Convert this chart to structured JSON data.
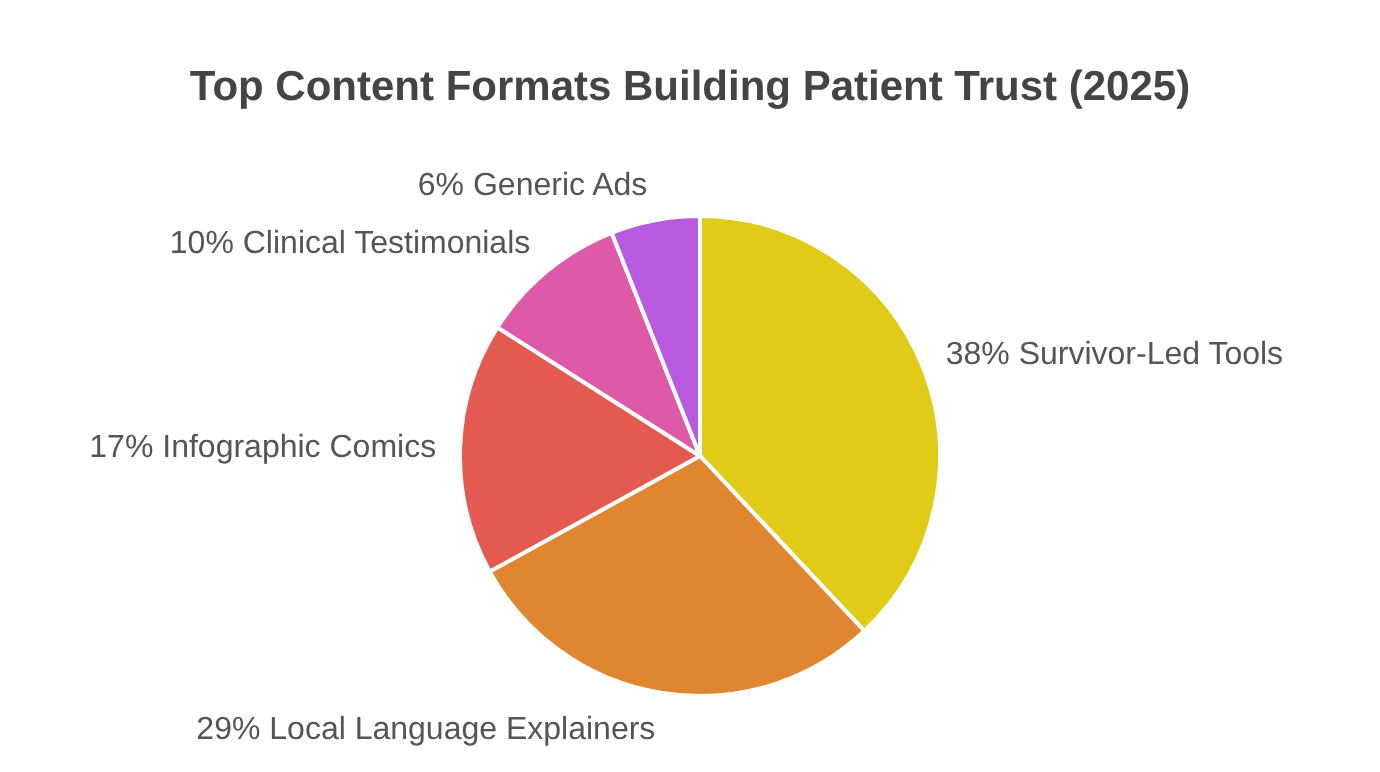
{
  "chart_data": {
    "type": "pie",
    "title": "Top Content Formats Building Patient Trust (2025)",
    "categories": [
      "Survivor-Led Tools",
      "Local Language Explainers",
      "Infographic Comics",
      "Clinical Testimonials",
      "Generic Ads"
    ],
    "values": [
      38,
      29,
      17,
      10,
      6
    ],
    "value_labels": [
      "38%",
      "29%",
      "17%",
      "10%",
      "6%"
    ],
    "colors": [
      "#dfcb18",
      "#e08530",
      "#e35a50",
      "#dd5aa8",
      "#b85ae0"
    ],
    "legend": false
  }
}
